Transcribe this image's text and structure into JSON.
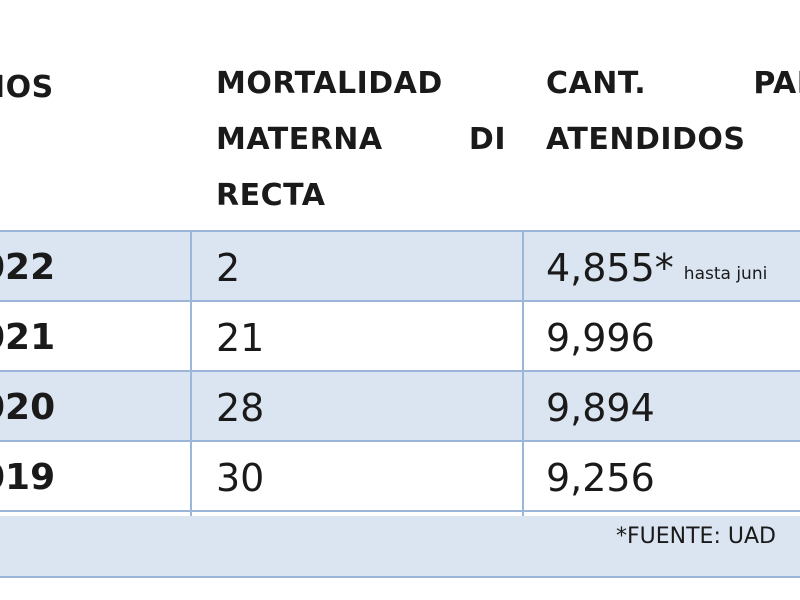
{
  "table": {
    "headers": {
      "years": "ÑOS",
      "mortality_line1": [
        "MORTALIDAD"
      ],
      "mortality_line2": [
        "MATERNA",
        "DI"
      ],
      "mortality_line3": [
        "RECTA"
      ],
      "births_line1": [
        "CANT.",
        "PARTO"
      ],
      "births_line2": [
        "ATENDIDOS"
      ]
    },
    "rows": [
      {
        "year": "022",
        "mortality": "2",
        "births": "4,855*",
        "note": "hasta juni"
      },
      {
        "year": "021",
        "mortality": "21",
        "births": "9,996",
        "note": ""
      },
      {
        "year": "020",
        "mortality": "28",
        "births": "9,894",
        "note": ""
      },
      {
        "year": "019",
        "mortality": "30",
        "births": "9,256",
        "note": ""
      }
    ],
    "footer": "*FUENTE: UAD"
  },
  "colors": {
    "shade": "#dbe5f1",
    "rule": "#9bb6d9"
  }
}
